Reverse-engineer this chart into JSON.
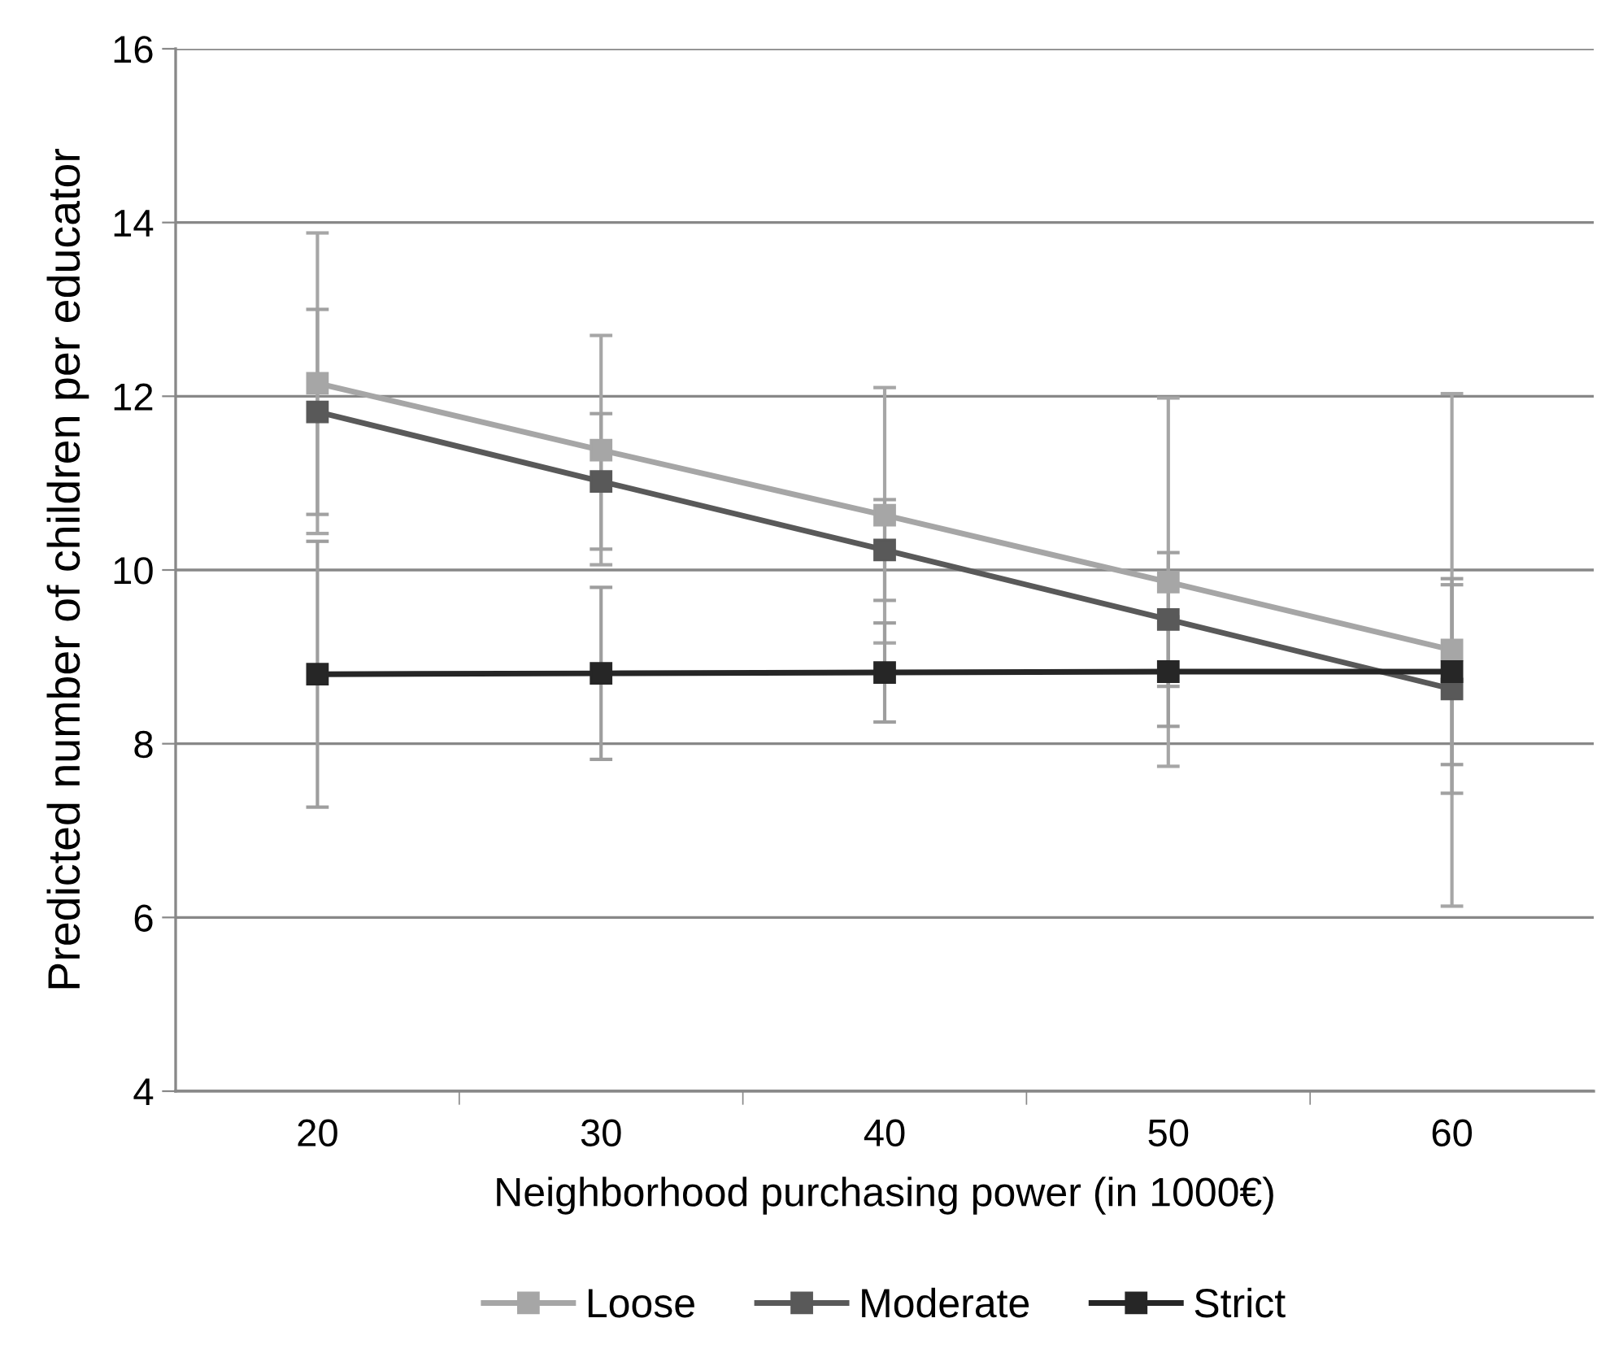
{
  "chart_data": {
    "type": "line",
    "xlabel": "Neighborhood purchasing power (in 1000€)",
    "ylabel": "Predicted number of children per educator",
    "categories": [
      "20",
      "30",
      "40",
      "50",
      "60"
    ],
    "series": [
      {
        "name": "Loose",
        "color": "#a6a6a6",
        "values": [
          12.15,
          11.38,
          10.63,
          9.86,
          9.08
        ],
        "errors": [
          1.73,
          1.32,
          1.47,
          2.12,
          2.95
        ]
      },
      {
        "name": "Moderate",
        "color": "#595959",
        "values": [
          11.82,
          11.02,
          10.23,
          9.43,
          8.63
        ],
        "errors": [
          1.18,
          0.78,
          0.58,
          0.77,
          1.2
        ]
      },
      {
        "name": "Strict",
        "color": "#262626",
        "values": [
          8.8,
          8.81,
          8.82,
          8.83,
          8.83
        ],
        "errors": [
          1.53,
          0.99,
          0.57,
          0.63,
          1.07
        ]
      }
    ],
    "ylim": [
      4,
      16
    ],
    "yticks": [
      4,
      6,
      8,
      10,
      12,
      14,
      16
    ],
    "grid": "y",
    "legend": "bottom",
    "marker": "square",
    "line_style": "solid"
  }
}
